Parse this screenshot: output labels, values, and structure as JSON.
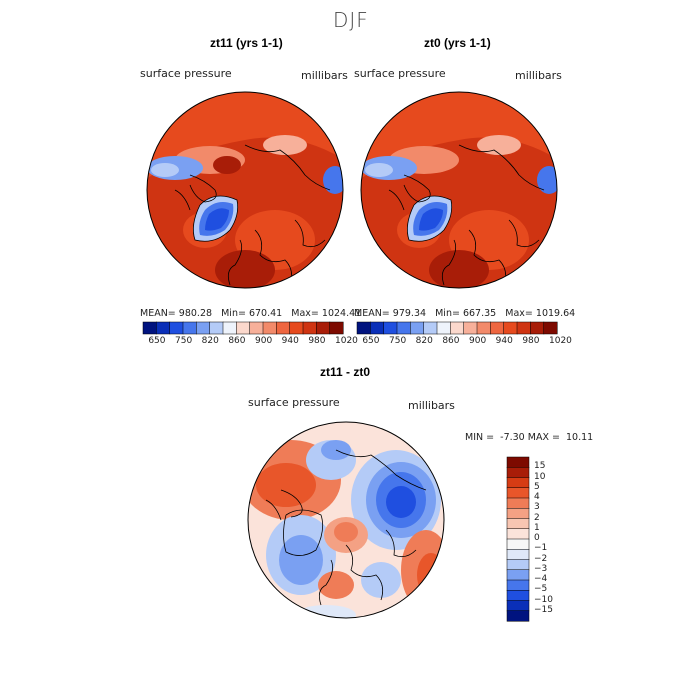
{
  "figure": {
    "title": "DJF"
  },
  "panels": [
    {
      "title": "zt11 (yrs 1-1)",
      "variable_label": "surface pressure",
      "units_label": "millibars",
      "stats": {
        "mean_label": "MEAN=",
        "mean": "980.28",
        "min_label": "Min=",
        "min": "670.41",
        "max_label": "Max=",
        "max": "1024.41"
      }
    },
    {
      "title": "zt0 (yrs 1-1)",
      "variable_label": "surface pressure",
      "units_label": "millibars",
      "stats": {
        "mean_label": "MEAN=",
        "mean": "979.34",
        "min_label": "Min=",
        "min": "667.35",
        "max_label": "Max=",
        "max": "1019.64"
      }
    },
    {
      "title": "zt11 - zt0",
      "variable_label": "surface pressure",
      "units_label": "millibars",
      "stats": {
        "min_label": "MIN =",
        "min": "-7.30",
        "max_label": "MAX =",
        "max": "10.11"
      }
    }
  ],
  "colorbars": {
    "absolute": {
      "colors": [
        "#00137f",
        "#0a2fb8",
        "#1f4fe0",
        "#4676ec",
        "#7aa0f2",
        "#b4cbf7",
        "#eef3fb",
        "#fbd8cc",
        "#f7b09a",
        "#f28a6a",
        "#ee6640",
        "#e64a1e",
        "#cf3412",
        "#a81d08",
        "#7d0a00"
      ],
      "tick_labels": [
        "650",
        "750",
        "820",
        "860",
        "900",
        "940",
        "980",
        "1020"
      ]
    },
    "difference": {
      "colors": [
        "#00137f",
        "#0a2fb8",
        "#1f4fe0",
        "#4676ec",
        "#7aa0f2",
        "#b4cbf7",
        "#dfe8f8",
        "#f7f7f7",
        "#fbe3da",
        "#f8c6b2",
        "#f4a184",
        "#ef7c57",
        "#e8562a",
        "#d63c14",
        "#a81d08",
        "#7d0a00"
      ],
      "tick_labels": [
        "15",
        "10",
        "5",
        "4",
        "3",
        "2",
        "1",
        "0",
        "−1",
        "−2",
        "−3",
        "−4",
        "−5",
        "−10",
        "−15"
      ]
    }
  }
}
